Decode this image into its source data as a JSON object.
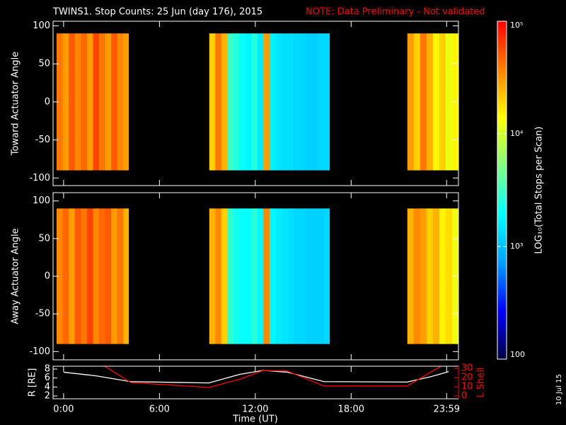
{
  "chart_data": {
    "type": "heatmap",
    "title": "TWINS1. Stop Counts: 25 Jun (day 176), 2015",
    "note": "NOTE: Data Preliminary - Not validated",
    "note_color": "#ff0000",
    "xlabel": "Time (UT)",
    "xlim": [
      -0.66,
      24.72
    ],
    "xticks": [
      {
        "value": 0,
        "label": "0:00"
      },
      {
        "value": 6,
        "label": "6:00"
      },
      {
        "value": 12,
        "label": "12:00"
      },
      {
        "value": 18,
        "label": "18:00"
      },
      {
        "value": 23.98,
        "label": "23:59"
      }
    ],
    "date": "10 Jul 15",
    "colorbar": {
      "label": "LOG₁₀(Total Stops per Scan)",
      "lim": [
        100,
        100000
      ],
      "log": true,
      "ticks": [
        100,
        {
          "value": 1000,
          "label": "10³"
        },
        {
          "value": 10000,
          "label": "10⁴"
        },
        {
          "value": 100000,
          "label": "10⁵"
        }
      ],
      "colormap": [
        "#000040",
        "#0000ff",
        "#00a0ff",
        "#00ffff",
        "#80ff80",
        "#ffff00",
        "#ff8000",
        "#ff0000"
      ]
    },
    "panels": [
      {
        "ylabel": "Toward Actuator Angle",
        "ylim": [
          -110,
          106
        ],
        "yticks": [
          -100,
          -50,
          0,
          50,
          100
        ],
        "angle_range": [
          -90,
          90
        ],
        "blocks": [
          {
            "bins": [
              -0.44,
              -0.06,
              0.32,
              0.7,
              1.08,
              1.46,
              1.84,
              2.22,
              2.6,
              2.98,
              3.36,
              3.74,
              4.07
            ],
            "values": [
              40000,
              30000,
              50000,
              35000,
              45000,
              30000,
              60000,
              40000,
              30000,
              50000,
              35000,
              30000
            ]
          },
          {
            "bins": [
              9.12,
              9.5,
              9.87,
              10.25,
              10.63,
              11.0,
              11.38,
              11.76,
              12.13,
              12.51,
              12.89,
              13.26,
              13.64,
              14.02,
              14.39,
              14.77,
              15.15,
              15.52,
              15.9,
              16.27,
              16.65
            ],
            "values": [
              20000,
              40000,
              25000,
              3000,
              2500,
              2000,
              1800,
              2500,
              1600,
              30000,
              1700,
              1500,
              1400,
              1400,
              1300,
              1300,
              1200,
              1200,
              1300,
              1300
            ]
          },
          {
            "bins": [
              21.52,
              21.92,
              22.32,
              22.72,
              23.12,
              23.52,
              23.92,
              24.32,
              24.7
            ],
            "values": [
              30000,
              20000,
              40000,
              25000,
              15000,
              20000,
              12000,
              15000
            ]
          }
        ]
      },
      {
        "ylabel": "Away Actuator Angle",
        "ylim": [
          -111,
          111
        ],
        "yticks": [
          -100,
          -50,
          0,
          50,
          100
        ],
        "angle_range": [
          -90,
          90
        ],
        "blocks": [
          {
            "bins": [
              -0.44,
              -0.06,
              0.32,
              0.7,
              1.08,
              1.46,
              1.84,
              2.22,
              2.6,
              2.98,
              3.36,
              3.74,
              4.07
            ],
            "values": [
              35000,
              45000,
              30000,
              50000,
              40000,
              60000,
              35000,
              45000,
              50000,
              30000,
              40000,
              25000
            ]
          },
          {
            "bins": [
              9.12,
              9.5,
              9.87,
              10.25,
              10.63,
              11.0,
              11.38,
              11.76,
              12.13,
              12.51,
              12.89,
              13.26,
              13.64,
              14.02,
              14.39,
              14.77,
              15.15,
              15.52,
              15.9,
              16.27,
              16.65
            ],
            "values": [
              25000,
              35000,
              20000,
              2800,
              2200,
              2000,
              2000,
              2600,
              1800,
              35000,
              1800,
              1600,
              1500,
              1400,
              1300,
              1300,
              1200,
              1200,
              1200,
              1300
            ]
          },
          {
            "bins": [
              21.52,
              21.92,
              22.32,
              22.72,
              23.12,
              23.52,
              23.92,
              24.32,
              24.7
            ],
            "values": [
              25000,
              35000,
              30000,
              20000,
              25000,
              15000,
              18000,
              12000
            ]
          }
        ]
      }
    ],
    "orbit": {
      "type": "line",
      "ylabel": "R [RE]",
      "ylim": [
        1.37,
        8.63
      ],
      "yticks": [
        2,
        4,
        6,
        8
      ],
      "y2label": "L Shell",
      "y2lim": [
        -3.1,
        32.3
      ],
      "y2ticks": [
        0,
        10,
        20,
        30
      ],
      "y2color": "#ff0000",
      "series": [
        {
          "color": "#ffffff",
          "x": [
            0,
            2,
            4.2,
            9.1,
            11,
            12.5,
            14,
            16.3,
            21.5,
            23,
            24.1
          ],
          "values": [
            7.3,
            6.5,
            5.2,
            4.9,
            6.8,
            7.7,
            7.3,
            5.2,
            5.1,
            6.3,
            7.4
          ]
        },
        {
          "color": "#ff0000",
          "axis": "y2",
          "x": [
            2.6,
            4.2,
            9.1,
            11,
            12.5,
            14,
            16.3,
            21.5,
            23.6
          ],
          "values": [
            32,
            14.6,
            9.2,
            18,
            27.7,
            27,
            10.8,
            10.8,
            32
          ]
        }
      ]
    }
  }
}
